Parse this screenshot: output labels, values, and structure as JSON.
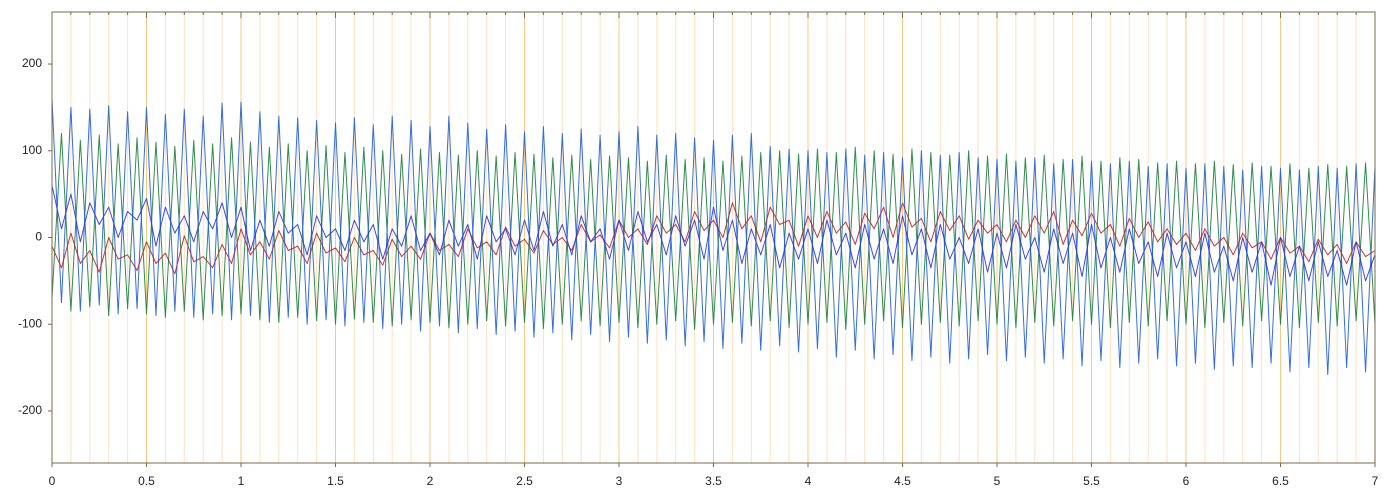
{
  "chart_data": {
    "type": "line",
    "xlim": [
      0,
      7
    ],
    "ylim": [
      -260,
      260
    ],
    "xticks": [
      0,
      0.5,
      1,
      1.5,
      2,
      2.5,
      3,
      3.5,
      4,
      4.5,
      5,
      5.5,
      6,
      6.5,
      7
    ],
    "xminorticks": [
      0.1,
      0.2,
      0.3,
      0.4,
      0.6,
      0.7,
      0.8,
      0.9,
      1.1,
      1.2,
      1.3,
      1.4,
      1.6,
      1.7,
      1.8,
      1.9,
      2.1,
      2.2,
      2.3,
      2.4,
      2.6,
      2.7,
      2.8,
      2.9,
      3.1,
      3.2,
      3.3,
      3.4,
      3.6,
      3.7,
      3.8,
      3.9,
      4.1,
      4.2,
      4.3,
      4.4,
      4.6,
      4.7,
      4.8,
      4.9,
      5.1,
      5.2,
      5.3,
      5.4,
      5.6,
      5.7,
      5.8,
      5.9,
      6.1,
      6.2,
      6.3,
      6.4,
      6.6,
      6.7,
      6.8,
      6.9
    ],
    "yticks": [
      -200,
      -100,
      0,
      100,
      200
    ],
    "grid": true,
    "x": [
      0,
      0.05,
      0.1,
      0.15,
      0.2,
      0.25,
      0.3,
      0.35,
      0.4,
      0.45,
      0.5,
      0.55,
      0.6,
      0.65,
      0.7,
      0.75,
      0.8,
      0.85,
      0.9,
      0.95,
      1,
      1.05,
      1.1,
      1.15,
      1.2,
      1.25,
      1.3,
      1.35,
      1.4,
      1.45,
      1.5,
      1.55,
      1.6,
      1.65,
      1.7,
      1.75,
      1.8,
      1.85,
      1.9,
      1.95,
      2,
      2.05,
      2.1,
      2.15,
      2.2,
      2.25,
      2.3,
      2.35,
      2.4,
      2.45,
      2.5,
      2.55,
      2.6,
      2.65,
      2.7,
      2.75,
      2.8,
      2.85,
      2.9,
      2.95,
      3,
      3.05,
      3.1,
      3.15,
      3.2,
      3.25,
      3.3,
      3.35,
      3.4,
      3.45,
      3.5,
      3.55,
      3.6,
      3.65,
      3.7,
      3.75,
      3.8,
      3.85,
      3.9,
      3.95,
      4,
      4.05,
      4.1,
      4.15,
      4.2,
      4.25,
      4.3,
      4.35,
      4.4,
      4.45,
      4.5,
      4.55,
      4.6,
      4.65,
      4.7,
      4.75,
      4.8,
      4.85,
      4.9,
      4.95,
      5,
      5.05,
      5.1,
      5.15,
      5.2,
      5.25,
      5.3,
      5.35,
      5.4,
      5.45,
      5.5,
      5.55,
      5.6,
      5.65,
      5.7,
      5.75,
      5.8,
      5.85,
      5.9,
      5.95,
      6,
      6.05,
      6.1,
      6.15,
      6.2,
      6.25,
      6.3,
      6.35,
      6.4,
      6.45,
      6.5,
      6.55,
      6.6,
      6.65,
      6.7,
      6.75,
      6.8,
      6.85,
      6.9,
      6.95,
      7
    ],
    "series": [
      {
        "color": "#1a7f3c",
        "values": [
          -70,
          120,
          -85,
          112,
          -80,
          118,
          -90,
          108,
          -82,
          115,
          -88,
          110,
          -92,
          105,
          -85,
          112,
          -95,
          108,
          -90,
          115,
          -88,
          110,
          -95,
          104,
          -98,
          108,
          -92,
          100,
          -96,
          106,
          -100,
          98,
          -94,
          104,
          -98,
          100,
          -102,
          96,
          -95,
          102,
          -98,
          98,
          -104,
          95,
          -100,
          100,
          -96,
          94,
          -102,
          98,
          -98,
          96,
          -105,
          92,
          -100,
          95,
          -96,
          90,
          -102,
          94,
          -98,
          92,
          -104,
          88,
          -100,
          95,
          -96,
          90,
          -106,
          92,
          -100,
          88,
          -98,
          94,
          -102,
          98,
          -96,
          100,
          -104,
          96,
          -100,
          102,
          -98,
          98,
          -106,
          104,
          -100,
          100,
          -96,
          96,
          -104,
          102,
          -100,
          98,
          -98,
          95,
          -102,
          100,
          -96,
          94,
          -100,
          96,
          -104,
          92,
          -98,
          95,
          -102,
          90,
          -96,
          94,
          -100,
          88,
          -104,
          92,
          -98,
          90,
          -102,
          86,
          -96,
          88,
          -100,
          85,
          -104,
          88,
          -98,
          84,
          -102,
          86,
          -96,
          82,
          -100,
          85,
          -104,
          80,
          -98,
          84,
          -102,
          82,
          -96,
          86,
          -100
        ]
      },
      {
        "color": "#1f5fd6",
        "values": [
          160,
          -75,
          150,
          -85,
          148,
          -78,
          152,
          -88,
          145,
          -82,
          150,
          -90,
          142,
          -85,
          148,
          -92,
          140,
          -88,
          155,
          -95,
          156,
          -90,
          145,
          -98,
          140,
          -92,
          138,
          -100,
          135,
          -95,
          132,
          -102,
          138,
          -98,
          130,
          -105,
          140,
          -100,
          135,
          -108,
          128,
          -102,
          140,
          -110,
          132,
          -105,
          125,
          -112,
          130,
          -108,
          122,
          -115,
          128,
          -110,
          120,
          -118,
          125,
          -112,
          118,
          -120,
          122,
          -115,
          128,
          -122,
          118,
          -118,
          120,
          -125,
          115,
          -120,
          112,
          -128,
          118,
          -122,
          120,
          -130,
          105,
          -125,
          102,
          -132,
          100,
          -128,
          98,
          -138,
          102,
          -130,
          95,
          -140,
          98,
          -135,
          92,
          -142,
          100,
          -138,
          95,
          -145,
          98,
          -140,
          92,
          -135,
          90,
          -142,
          88,
          -138,
          92,
          -145,
          85,
          -140,
          90,
          -148,
          88,
          -142,
          85,
          -150,
          88,
          -145,
          82,
          -140,
          85,
          -148,
          80,
          -145,
          85,
          -152,
          82,
          -148,
          78,
          -150,
          82,
          -145,
          80,
          -155,
          78,
          -150,
          82,
          -158,
          80,
          -150,
          85,
          -155,
          82
        ]
      },
      {
        "color": "#c0202a",
        "values": [
          -10,
          -35,
          5,
          -30,
          -15,
          -40,
          0,
          -25,
          -20,
          -38,
          -5,
          -30,
          -18,
          -42,
          2,
          -28,
          -22,
          -35,
          -8,
          -30,
          10,
          -20,
          -5,
          -25,
          8,
          -15,
          -10,
          -30,
          5,
          -18,
          -12,
          -28,
          0,
          -20,
          -15,
          -32,
          -2,
          -22,
          -10,
          -25,
          5,
          -15,
          -8,
          -22,
          10,
          -12,
          -5,
          -20,
          12,
          -10,
          -2,
          -18,
          8,
          -8,
          0,
          -15,
          15,
          -5,
          3,
          -12,
          20,
          0,
          10,
          -8,
          25,
          5,
          15,
          -5,
          30,
          8,
          20,
          0,
          40,
          10,
          25,
          -5,
          35,
          15,
          20,
          -10,
          25,
          0,
          30,
          5,
          18,
          -8,
          28,
          10,
          35,
          0,
          40,
          12,
          22,
          -5,
          30,
          8,
          25,
          -2,
          20,
          5,
          15,
          -5,
          20,
          0,
          25,
          5,
          30,
          -8,
          20,
          2,
          28,
          5,
          15,
          -10,
          22,
          0,
          18,
          -5,
          10,
          -8,
          5,
          -15,
          10,
          -10,
          0,
          -20,
          5,
          -12,
          -5,
          -25,
          0,
          -18,
          -10,
          -28,
          -2,
          -20,
          -8,
          -30,
          -5,
          -22,
          -15
        ]
      },
      {
        "color": "#2c34e0",
        "values": [
          60,
          10,
          50,
          -5,
          40,
          15,
          35,
          0,
          30,
          20,
          45,
          -10,
          35,
          5,
          25,
          -5,
          30,
          10,
          40,
          0,
          35,
          -15,
          20,
          -10,
          30,
          5,
          15,
          -20,
          25,
          0,
          10,
          -15,
          20,
          -5,
          15,
          -25,
          10,
          -10,
          25,
          -15,
          5,
          -20,
          20,
          -10,
          15,
          -25,
          25,
          -5,
          10,
          -20,
          20,
          -15,
          30,
          -10,
          15,
          -20,
          25,
          -5,
          10,
          -25,
          20,
          -15,
          30,
          -5,
          15,
          -20,
          25,
          -10,
          20,
          -25,
          35,
          -15,
          20,
          -30,
          10,
          -20,
          15,
          -35,
          5,
          -25,
          10,
          -30,
          20,
          -20,
          5,
          -35,
          15,
          -25,
          10,
          -30,
          25,
          -20,
          10,
          -35,
          15,
          -25,
          0,
          -30,
          10,
          -40,
          5,
          -35,
          15,
          -25,
          0,
          -40,
          10,
          -30,
          5,
          -45,
          15,
          -35,
          0,
          -40,
          10,
          -30,
          -5,
          -45,
          5,
          -35,
          -5,
          -45,
          5,
          -40,
          -10,
          -50,
          0,
          -40,
          -5,
          -55,
          0,
          -45,
          -10,
          -50,
          -5,
          -45,
          -15,
          -55,
          -5,
          -50,
          -20
        ]
      }
    ]
  }
}
